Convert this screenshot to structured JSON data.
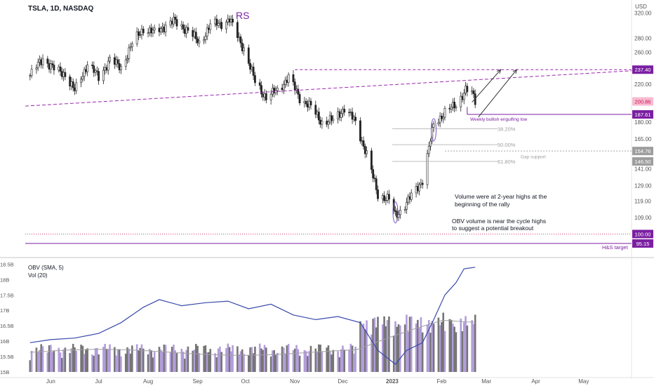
{
  "header": {
    "symbol": "TSLA, 1D, NASDAQ",
    "currency": "USD"
  },
  "chart_data": [
    {
      "type": "candlestick",
      "title": "TSLA, 1D, NASDAQ",
      "y_scale": "log",
      "ylim": [
        90,
        330
      ],
      "y_ticks": [
        100,
        109,
        119,
        129,
        141,
        154,
        165,
        180,
        200,
        220,
        260,
        280,
        320
      ],
      "y_tick_labels": [
        "",
        "109.00",
        "119.00",
        "129.00",
        "141.00",
        "",
        "165.00",
        "180.00",
        "",
        "220.00",
        "260.00",
        "280.00",
        "320.00"
      ],
      "x_tick_labels": [
        "Jun",
        "Jul",
        "Aug",
        "Sep",
        "Oct",
        "Nov",
        "Dec",
        "2023",
        "Feb",
        "Mar",
        "Apr",
        "May"
      ],
      "close_path": [
        [
          "2022-05-19",
          230
        ],
        [
          "2022-05-27",
          252
        ],
        [
          "2022-06-03",
          238
        ],
        [
          "2022-06-10",
          232
        ],
        [
          "2022-06-16",
          212
        ],
        [
          "2022-06-24",
          245
        ],
        [
          "2022-07-01",
          228
        ],
        [
          "2022-07-08",
          250
        ],
        [
          "2022-07-15",
          240
        ],
        [
          "2022-07-22",
          272
        ],
        [
          "2022-07-29",
          295
        ],
        [
          "2022-08-05",
          288
        ],
        [
          "2022-08-12",
          300
        ],
        [
          "2022-08-17",
          306
        ],
        [
          "2022-08-26",
          292
        ],
        [
          "2022-09-02",
          273
        ],
        [
          "2022-09-09",
          300
        ],
        [
          "2022-09-16",
          303
        ],
        [
          "2022-09-21",
          309
        ],
        [
          "2022-09-30",
          265
        ],
        [
          "2022-10-07",
          223
        ],
        [
          "2022-10-14",
          205
        ],
        [
          "2022-10-21",
          213
        ],
        [
          "2022-10-28",
          228
        ],
        [
          "2022-11-04",
          205
        ],
        [
          "2022-11-11",
          195
        ],
        [
          "2022-11-18",
          180
        ],
        [
          "2022-11-25",
          182
        ],
        [
          "2022-12-02",
          194
        ],
        [
          "2022-12-09",
          180
        ],
        [
          "2022-12-16",
          152
        ],
        [
          "2022-12-23",
          123
        ],
        [
          "2022-12-30",
          120
        ],
        [
          "2023-01-03",
          110
        ],
        [
          "2023-01-06",
          113
        ],
        [
          "2023-01-13",
          122
        ],
        [
          "2023-01-20",
          133
        ],
        [
          "2023-01-27",
          178
        ],
        [
          "2023-02-03",
          190
        ],
        [
          "2023-02-10",
          197
        ],
        [
          "2023-02-16",
          214
        ],
        [
          "2023-02-20",
          209
        ],
        [
          "2023-02-22",
          200.86
        ]
      ],
      "price_labels": [
        {
          "value": 237.4,
          "label": "237.40",
          "color": "#7b1fa2"
        },
        {
          "value": 200.86,
          "label": "200.86",
          "color": "#f8bbd0"
        },
        {
          "value": 187.61,
          "label": "187.61",
          "color": "#7b1fa2"
        },
        {
          "value": 154.76,
          "label": "154.76",
          "color": "#9e9e9e"
        },
        {
          "value": 146.5,
          "label": "146.50",
          "color": "#9e9e9e"
        },
        {
          "value": 100.0,
          "label": "100.00",
          "color": "#7b1fa2"
        },
        {
          "value": 95.15,
          "label": "95.15",
          "color": "#7b1fa2"
        }
      ],
      "fib_levels": [
        {
          "label": "38.20%",
          "value": 174
        },
        {
          "label": "50.00%",
          "value": 160
        },
        {
          "label": "61.80%",
          "value": 146.5
        }
      ],
      "annotations": {
        "pattern": "RS",
        "weekly_low": "Weekly bullish engulfing low",
        "gap": "Gap support",
        "hs_target": "H&S target",
        "note1": [
          "Volume were at 2-year highs at the",
          "beginning of the rally"
        ],
        "note2": [
          "OBV volume is near the cycle highs",
          "to suggest a potential breakout"
        ]
      }
    },
    {
      "type": "bar+line",
      "legend": [
        "OBV (SMA, 5)",
        "Vol (20)"
      ],
      "y_tick_labels": [
        "18.5B",
        "18B",
        "17.5B",
        "17B",
        "16.5B",
        "16B",
        "15.5B",
        "15B"
      ],
      "obv_path": [
        [
          "2022-05-19",
          15.95
        ],
        [
          "2022-06-01",
          16.05
        ],
        [
          "2022-06-16",
          16.1
        ],
        [
          "2022-07-01",
          16.25
        ],
        [
          "2022-07-15",
          16.6
        ],
        [
          "2022-07-29",
          17.1
        ],
        [
          "2022-08-08",
          17.35
        ],
        [
          "2022-08-22",
          17.15
        ],
        [
          "2022-09-06",
          17.25
        ],
        [
          "2022-09-20",
          17.3
        ],
        [
          "2022-10-03",
          17.05
        ],
        [
          "2022-10-17",
          17.2
        ],
        [
          "2022-10-31",
          16.85
        ],
        [
          "2022-11-14",
          16.7
        ],
        [
          "2022-11-28",
          16.8
        ],
        [
          "2022-12-12",
          16.6
        ],
        [
          "2022-12-23",
          15.7
        ],
        [
          "2023-01-03",
          15.25
        ],
        [
          "2023-01-10",
          15.7
        ],
        [
          "2023-01-20",
          15.95
        ],
        [
          "2023-01-27",
          16.7
        ],
        [
          "2023-02-03",
          17.5
        ],
        [
          "2023-02-10",
          17.9
        ],
        [
          "2023-02-15",
          18.35
        ],
        [
          "2023-02-22",
          18.4
        ]
      ]
    }
  ]
}
